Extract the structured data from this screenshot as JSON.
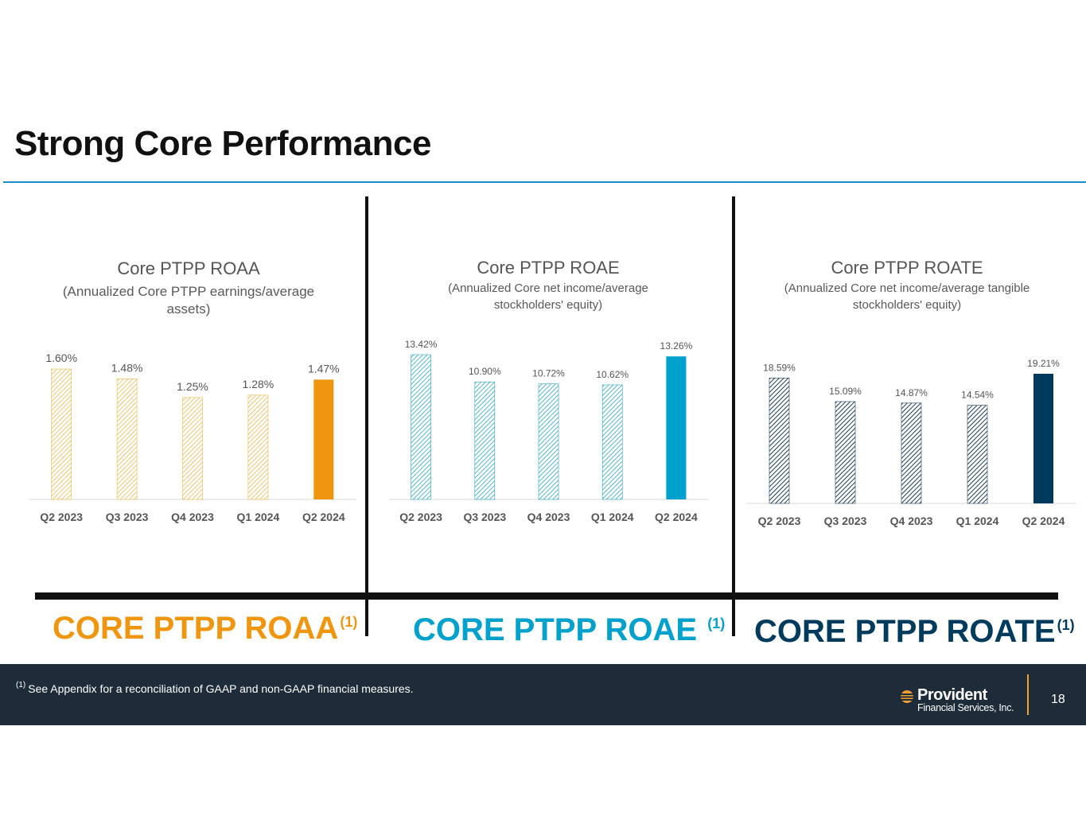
{
  "title": "Strong Core Performance",
  "colors": {
    "roaa": "#f0960e",
    "roaa_hatch": "#e8b84a",
    "roae": "#00a1cc",
    "roae_hatch": "#2aa5c2",
    "roate": "#003b5e",
    "roate_hatch": "#1e3f58"
  },
  "panels": [
    {
      "title": "Core PTPP ROAA",
      "subtitle": "(Annualized Core PTPP earnings/average assets)",
      "big_label": "CORE PTPP ROAA",
      "big_label_note": "(1)"
    },
    {
      "title": "Core PTPP ROAE",
      "subtitle": "(Annualized Core net income/average stockholders' equity)",
      "big_label": "CORE PTPP ROAE",
      "big_label_note": "(1)"
    },
    {
      "title": "Core PTPP ROATE",
      "subtitle": "(Annualized Core net income/average tangible stockholders' equity)",
      "big_label": "CORE PTPP ROATE",
      "big_label_note": "(1)"
    }
  ],
  "chart_data": [
    {
      "type": "bar",
      "title": "Core PTPP ROAA",
      "subtitle": "(Annualized Core PTPP earnings/average assets)",
      "categories": [
        "Q2 2023",
        "Q3 2023",
        "Q4 2023",
        "Q1 2024",
        "Q2 2024"
      ],
      "values": [
        1.6,
        1.48,
        1.25,
        1.28,
        1.47
      ],
      "labels": [
        "1.60%",
        "1.48%",
        "1.25%",
        "1.28%",
        "1.47%"
      ],
      "highlighted": "Q2 2024",
      "ylim": [
        0,
        1.6
      ]
    },
    {
      "type": "bar",
      "title": "Core PTPP ROAE",
      "subtitle": "(Annualized Core net income/average stockholders' equity)",
      "categories": [
        "Q2 2023",
        "Q3 2023",
        "Q4 2023",
        "Q1 2024",
        "Q2 2024"
      ],
      "values": [
        13.42,
        10.9,
        10.72,
        10.62,
        13.26
      ],
      "labels": [
        "13.42%",
        "10.90%",
        "10.72%",
        "10.62%",
        "13.26%"
      ],
      "highlighted": "Q2 2024",
      "ylim": [
        0,
        13.42
      ]
    },
    {
      "type": "bar",
      "title": "Core PTPP ROATE",
      "subtitle": "(Annualized Core net income/average tangible stockholders' equity)",
      "categories": [
        "Q2 2023",
        "Q3 2023",
        "Q4 2023",
        "Q1 2024",
        "Q2 2024"
      ],
      "values": [
        18.59,
        15.09,
        14.87,
        14.54,
        19.21
      ],
      "labels": [
        "18.59%",
        "15.09%",
        "14.87%",
        "14.54%",
        "19.21%"
      ],
      "highlighted": "Q2 2024",
      "ylim": [
        0,
        19.21
      ]
    }
  ],
  "footer": {
    "footnote_marker": "(1)",
    "footnote": "See Appendix for a reconciliation of GAAP and non-GAAP financial measures.",
    "logo_name": "Provident",
    "logo_sub": "Financial Services, Inc.",
    "page_number": "18"
  }
}
